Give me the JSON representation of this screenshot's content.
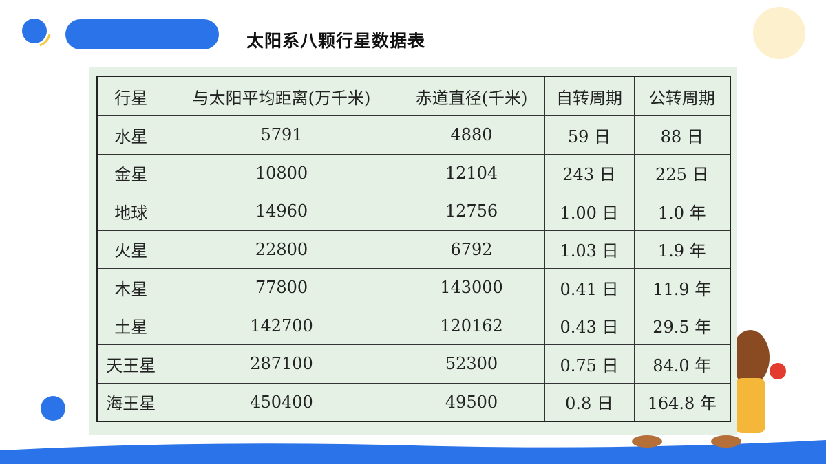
{
  "title": "太阳系八颗行星数据表",
  "table": {
    "header": [
      "行星",
      "与太阳平均距离(万千米)",
      "赤道直径(千米)",
      "自转周期",
      "公转周期"
    ],
    "rows": [
      [
        "水星",
        "5791",
        "4880",
        "59 日",
        "88 日"
      ],
      [
        "金星",
        "10800",
        "12104",
        "243 日",
        "225 日"
      ],
      [
        "地球",
        "14960",
        "12756",
        "1.00 日",
        "1.0 年"
      ],
      [
        "火星",
        "22800",
        "6792",
        "1.03 日",
        "1.9 年"
      ],
      [
        "木星",
        "77800",
        "143000",
        "0.41 日",
        "11.9 年"
      ],
      [
        "土星",
        "142700",
        "120162",
        "0.43 日",
        "29.5 年"
      ],
      [
        "天王星",
        "287100",
        "52300",
        "0.75 日",
        "84.0 年"
      ],
      [
        "海王星",
        "450400",
        "49500",
        "0.8 日",
        "164.8 年"
      ]
    ]
  }
}
